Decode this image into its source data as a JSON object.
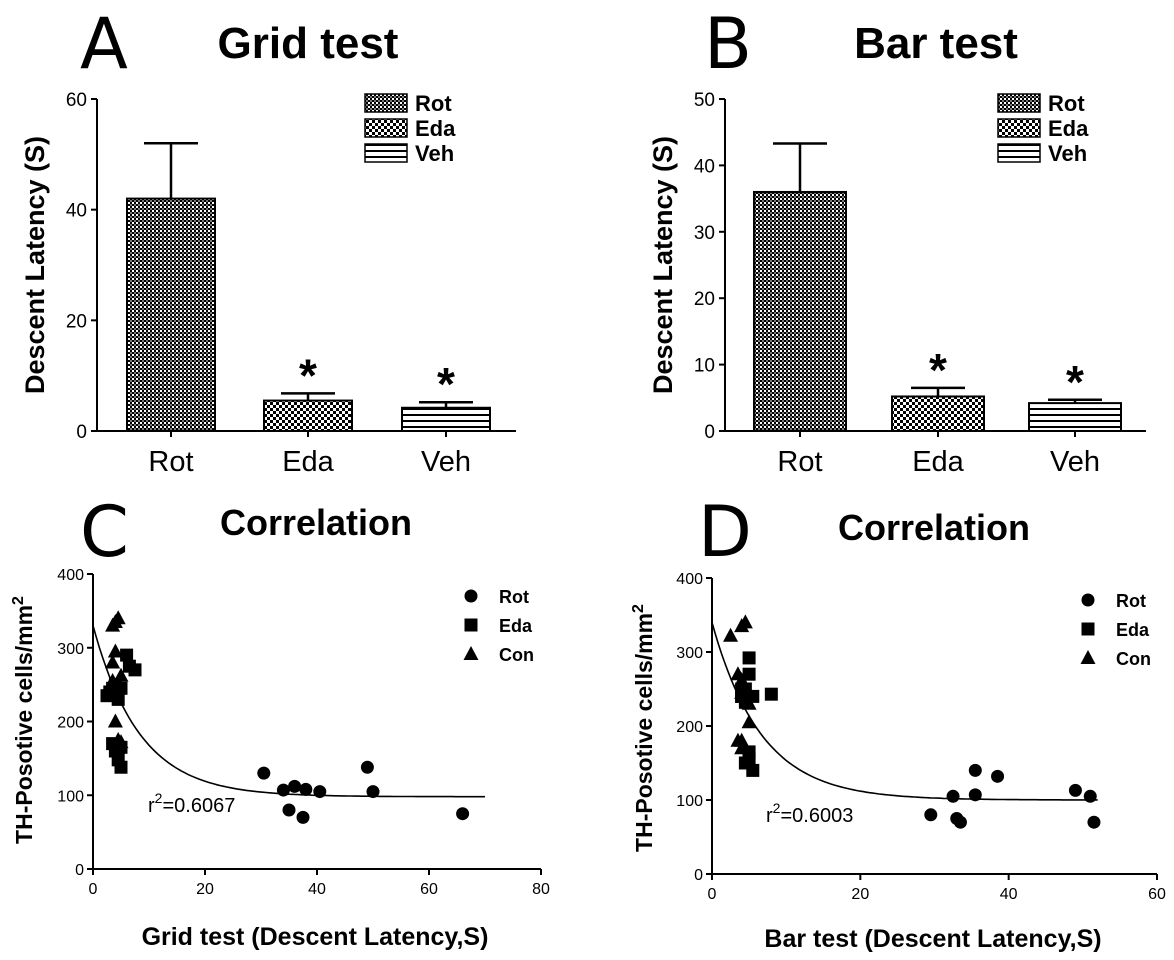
{
  "chart_data": [
    {
      "panel": "A",
      "type": "bar",
      "title": "Grid test",
      "ylabel": "Descent Latency (S)",
      "xlabel": "",
      "categories": [
        "Rot",
        "Eda",
        "Veh"
      ],
      "values": [
        42,
        5.5,
        4.2
      ],
      "errors": [
        10,
        1.3,
        1.0
      ],
      "significance": [
        "",
        "*",
        "*"
      ],
      "ylim": [
        0,
        60
      ],
      "yticks": [
        0,
        20,
        40,
        60
      ],
      "legend": [
        "Rot",
        "Eda",
        "Veh"
      ],
      "legend_position": "top-right",
      "grid": false
    },
    {
      "panel": "B",
      "type": "bar",
      "title": "Bar test",
      "ylabel": "Descent Latency (S)",
      "xlabel": "",
      "categories": [
        "Rot",
        "Eda",
        "Veh"
      ],
      "values": [
        36,
        5.2,
        4.2
      ],
      "errors": [
        7.3,
        1.3,
        0.5
      ],
      "significance": [
        "",
        "*",
        "*"
      ],
      "ylim": [
        0,
        50
      ],
      "yticks": [
        0,
        10,
        20,
        30,
        40,
        50
      ],
      "legend": [
        "Rot",
        "Eda",
        "Veh"
      ],
      "legend_position": "top-right",
      "grid": false
    },
    {
      "panel": "C",
      "type": "scatter",
      "title": "Correlation",
      "xlabel": "Grid test (Descent Latency,S)",
      "ylabel_main": "TH-Posotive cells/mm",
      "ylabel_sup": "2",
      "xlim": [
        0,
        80
      ],
      "ylim": [
        0,
        400
      ],
      "xticks": [
        0,
        20,
        40,
        60,
        80
      ],
      "yticks": [
        0,
        100,
        200,
        300,
        400
      ],
      "annotation_main": "r",
      "annotation_sup": "2",
      "annotation_rest": "=0.6067",
      "legend": [
        "Rot",
        "Eda",
        "Con"
      ],
      "legend_position": "top-right",
      "series": [
        {
          "name": "Rot",
          "marker": "circle",
          "x": [
            30.5,
            34,
            36,
            38,
            40.5,
            49,
            50,
            37.5,
            35,
            66
          ],
          "y": [
            130,
            107,
            112,
            108,
            105,
            138,
            105,
            70,
            80,
            75
          ]
        },
        {
          "name": "Eda",
          "marker": "square",
          "x": [
            2.5,
            3,
            4,
            5,
            6,
            6.5,
            7.5,
            3.5,
            4.5,
            5,
            3.5,
            4.5,
            5,
            4
          ],
          "y": [
            235,
            240,
            250,
            245,
            290,
            275,
            270,
            245,
            230,
            165,
            170,
            148,
            138,
            160
          ]
        },
        {
          "name": "Con",
          "marker": "triangle",
          "x": [
            3.5,
            4,
            4.5,
            4,
            5,
            3.5,
            4,
            4.5,
            5,
            4.5,
            3.5
          ],
          "y": [
            330,
            335,
            340,
            295,
            262,
            280,
            200,
            175,
            172,
            245,
            255
          ]
        }
      ],
      "fit": {
        "model": "one-phase-decay",
        "y0": 330,
        "plateau": 98,
        "k": 0.12,
        "x_range": [
          0,
          70
        ]
      }
    },
    {
      "panel": "D",
      "type": "scatter",
      "title": "Correlation",
      "xlabel": "Bar test (Descent Latency,S)",
      "ylabel_main": "TH-Posotive cells/mm",
      "ylabel_sup": "2",
      "xlim": [
        0,
        60
      ],
      "ylim": [
        0,
        400
      ],
      "xticks": [
        0,
        20,
        40,
        60
      ],
      "yticks": [
        0,
        100,
        200,
        300,
        400
      ],
      "annotation_main": "r",
      "annotation_sup": "2",
      "annotation_rest": "=0.6003",
      "legend": [
        "Rot",
        "Eda",
        "Con"
      ],
      "legend_position": "top-right",
      "series": [
        {
          "name": "Rot",
          "marker": "circle",
          "x": [
            29.5,
            32.5,
            33,
            33.5,
            35.5,
            35.5,
            38.5,
            49,
            51,
            51.5
          ],
          "y": [
            80,
            105,
            75,
            70,
            140,
            107,
            132,
            113,
            105,
            70
          ]
        },
        {
          "name": "Eda",
          "marker": "square",
          "x": [
            4,
            4.5,
            5,
            5,
            5.5,
            4,
            4.5,
            5,
            5.5,
            8,
            4.5,
            5,
            4
          ],
          "y": [
            240,
            250,
            270,
            292,
            240,
            240,
            232,
            165,
            140,
            243,
            150,
            155,
            250
          ]
        },
        {
          "name": "Con",
          "marker": "triangle",
          "x": [
            2.5,
            4,
            4.5,
            4,
            3.5,
            4,
            5,
            3.5,
            4,
            4,
            5
          ],
          "y": [
            322,
            335,
            340,
            262,
            270,
            180,
            205,
            180,
            170,
            245,
            230
          ]
        }
      ],
      "fit": {
        "model": "one-phase-decay",
        "y0": 340,
        "plateau": 100,
        "k": 0.15,
        "x_range": [
          0,
          52
        ]
      }
    }
  ],
  "panel_labels": [
    "A",
    "B",
    "C",
    "D"
  ],
  "colors": {
    "ink": "#000000",
    "background": "#ffffff"
  }
}
